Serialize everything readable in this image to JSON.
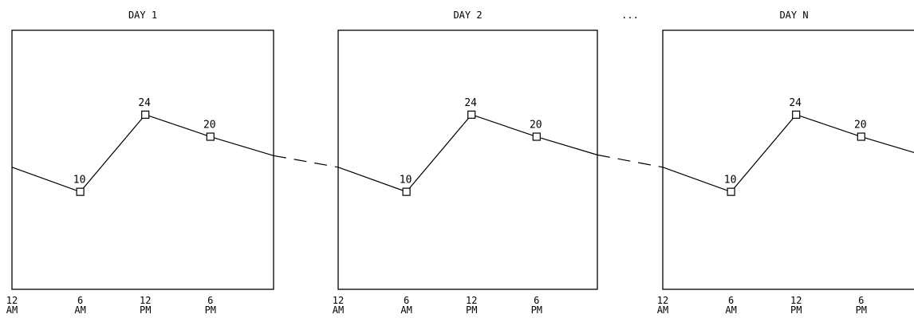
{
  "chart_data": {
    "type": "line",
    "ellipsis": "...",
    "panels": [
      {
        "title": "DAY 1",
        "x_ticks": [
          {
            "hour": 0,
            "line1": "12",
            "line2": "AM"
          },
          {
            "hour": 6,
            "line1": "6",
            "line2": "AM"
          },
          {
            "hour": 12,
            "line1": "12",
            "line2": "PM"
          },
          {
            "hour": 18,
            "line1": "6",
            "line2": "PM"
          }
        ],
        "points": [
          {
            "hour": 6,
            "value": 10,
            "label": "10"
          },
          {
            "hour": 12,
            "value": 24,
            "label": "24"
          },
          {
            "hour": 18,
            "value": 20,
            "label": "20"
          }
        ]
      },
      {
        "title": "DAY 2",
        "x_ticks": [
          {
            "hour": 0,
            "line1": "12",
            "line2": "AM"
          },
          {
            "hour": 6,
            "line1": "6",
            "line2": "AM"
          },
          {
            "hour": 12,
            "line1": "12",
            "line2": "PM"
          },
          {
            "hour": 18,
            "line1": "6",
            "line2": "PM"
          }
        ],
        "points": [
          {
            "hour": 6,
            "value": 10,
            "label": "10"
          },
          {
            "hour": 12,
            "value": 24,
            "label": "24"
          },
          {
            "hour": 18,
            "value": 20,
            "label": "20"
          }
        ]
      },
      {
        "title": "DAY N",
        "x_ticks": [
          {
            "hour": 0,
            "line1": "12",
            "line2": "AM"
          },
          {
            "hour": 6,
            "line1": "6",
            "line2": "AM"
          },
          {
            "hour": 12,
            "line1": "12",
            "line2": "PM"
          },
          {
            "hour": 18,
            "line1": "6",
            "line2": "PM"
          }
        ],
        "points": [
          {
            "hour": 6,
            "value": 10,
            "label": "10"
          },
          {
            "hour": 12,
            "value": 24,
            "label": "24"
          },
          {
            "hour": 18,
            "value": 20,
            "label": "20"
          }
        ]
      }
    ]
  }
}
